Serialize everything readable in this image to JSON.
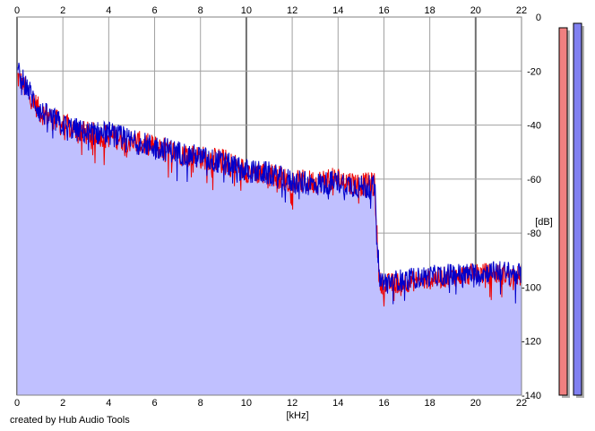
{
  "chart_data": {
    "type": "area",
    "xlabel": "[kHz]",
    "ylabel": "[dB]",
    "xlim": [
      0,
      22
    ],
    "ylim": [
      -140,
      0
    ],
    "x_ticks": [
      0,
      2,
      4,
      6,
      8,
      10,
      12,
      14,
      16,
      18,
      20,
      22
    ],
    "y_ticks": [
      0,
      -20,
      -40,
      -60,
      -80,
      -100,
      -120,
      -140
    ],
    "grid": true,
    "series": [
      {
        "color": "#ee0000",
        "x": [
          0,
          0.5,
          1,
          2,
          3,
          4,
          5,
          6,
          7,
          8,
          9,
          10,
          11,
          12,
          13,
          14,
          15,
          15.6,
          15.8,
          16,
          17,
          18,
          19,
          20,
          21,
          22
        ],
        "y": [
          -22,
          -28,
          -35,
          -40,
          -43,
          -44,
          -46,
          -48,
          -50,
          -52,
          -53,
          -57,
          -58,
          -61,
          -61,
          -60,
          -62,
          -62,
          -98,
          -99,
          -98,
          -97,
          -96,
          -95,
          -95,
          -96
        ]
      },
      {
        "color": "#0000cc",
        "x": [
          0,
          0.5,
          1,
          2,
          3,
          4,
          5,
          6,
          7,
          8,
          9,
          10,
          11,
          12,
          13,
          14,
          15,
          15.6,
          15.8,
          16,
          17,
          18,
          19,
          20,
          21,
          22
        ],
        "y": [
          -20,
          -27,
          -35,
          -40,
          -43,
          -43,
          -46,
          -48,
          -50,
          -52,
          -54,
          -57,
          -58,
          -61,
          -62,
          -61,
          -63,
          -63,
          -97,
          -98,
          -97,
          -96,
          -95,
          -95,
          -94,
          -95
        ]
      }
    ],
    "fill_color": "#c0c0ff",
    "meters": [
      {
        "channel": "left",
        "color": "#f08080"
      },
      {
        "channel": "right",
        "color": "#8080f0"
      }
    ]
  },
  "footer": {
    "credit": "created by Hub Audio Tools"
  }
}
